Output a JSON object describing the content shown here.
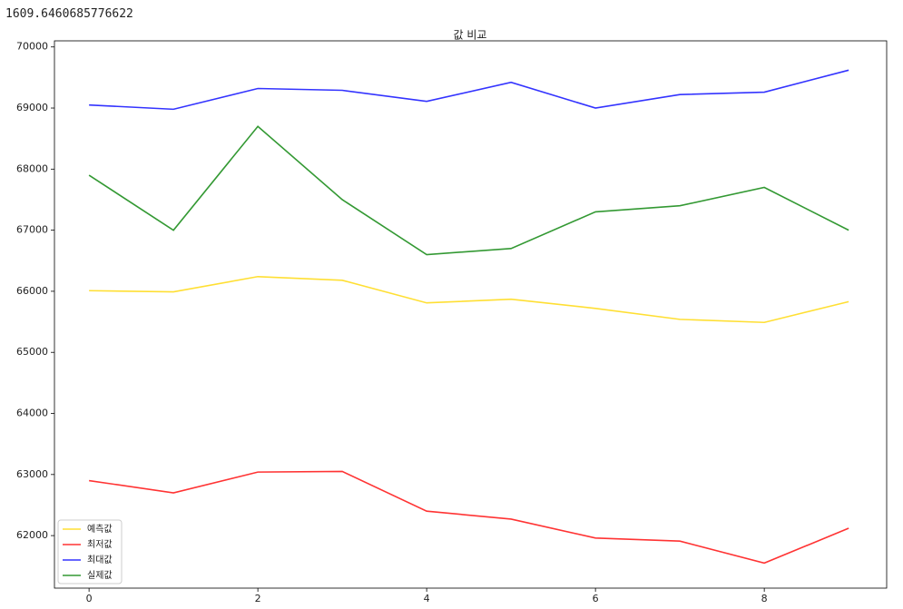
{
  "output": "1609.6460685776622",
  "chart_data": {
    "type": "line",
    "title": "값 비교",
    "x": [
      0,
      1,
      2,
      3,
      4,
      5,
      6,
      7,
      8,
      9
    ],
    "series": [
      {
        "name": "예측값",
        "color": "#ffd700",
        "values": [
          66010,
          65990,
          66240,
          66180,
          65810,
          65870,
          65720,
          65540,
          65490,
          65830
        ]
      },
      {
        "name": "최저값",
        "color": "#ff0000",
        "values": [
          62900,
          62700,
          63040,
          63050,
          62400,
          62270,
          61960,
          61910,
          61550,
          62120
        ]
      },
      {
        "name": "최대값",
        "color": "#0000ff",
        "values": [
          69050,
          68980,
          69320,
          69290,
          69110,
          69420,
          69000,
          69220,
          69260,
          69620
        ]
      },
      {
        "name": "실제값",
        "color": "#008000",
        "values": [
          67900,
          67000,
          68700,
          67500,
          66600,
          66700,
          67300,
          67400,
          67700,
          67000
        ]
      }
    ],
    "xlim": [
      -0.41,
      9.45
    ],
    "xticks": [
      0,
      2,
      4,
      6,
      8
    ],
    "ylim": [
      61140,
      70100
    ],
    "yticks": [
      62000,
      63000,
      64000,
      65000,
      66000,
      67000,
      68000,
      69000,
      70000
    ],
    "grid": false,
    "legend": "lower left"
  }
}
